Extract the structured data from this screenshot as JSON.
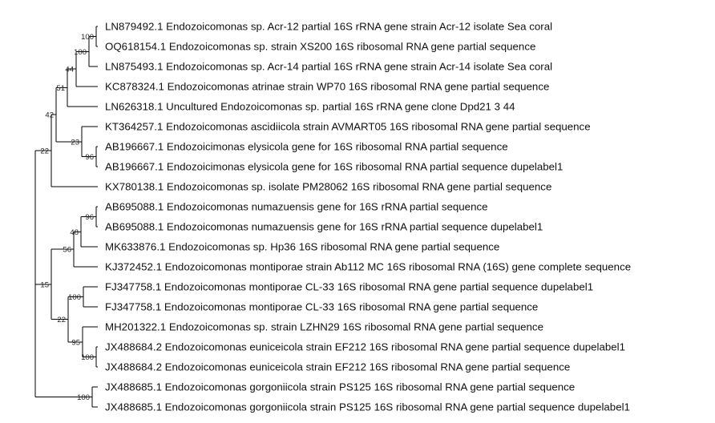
{
  "tree": {
    "taxa": [
      "LN879492.1 Endozoicomonas sp. Acr-12 partial 16S rRNA gene strain Acr-12 isolate Sea coral",
      "OQ618154.1 Endozoicomonas sp. strain XS200 16S ribosomal RNA gene partial sequence",
      "LN875493.1 Endozoicomonas sp. Acr-14 partial 16S rRNA gene strain Acr-14 isolate Sea coral",
      "KC878324.1 Endozoicomonas atrinae strain WP70 16S ribosomal RNA gene partial sequence",
      "LN626318.1 Uncultured Endozoicomonas sp. partial 16S rRNA gene clone Dpd21 3 44",
      "KT364257.1 Endozoicomonas ascidiicola strain AVMART05 16S ribosomal RNA gene partial sequence",
      "AB196667.1 Endozoicimonas elysicola gene for 16S ribosomal RNA partial sequence",
      "AB196667.1 Endozoicimonas elysicola gene for 16S ribosomal RNA partial sequence dupelabel1",
      "KX780138.1 Endozoicomonas sp. isolate PM28062 16S ribosomal RNA gene partial sequence",
      "AB695088.1 Endozoicomonas numazuensis gene for 16S rRNA partial sequence",
      "AB695088.1 Endozoicomonas numazuensis gene for 16S rRNA partial sequence dupelabel1",
      "MK633876.1 Endozoicomonas sp. Hp36 16S ribosomal RNA gene partial sequence",
      "KJ372452.1 Endozoicomonas montiporae strain Ab112 MC 16S ribosomal RNA (16S) gene complete sequence",
      "FJ347758.1 Endozoicomonas montiporae CL-33 16S ribosomal RNA gene partial sequence dupelabel1",
      "FJ347758.1 Endozoicomonas montiporae CL-33 16S ribosomal RNA gene partial sequence",
      "MH201322.1 Endozoicomonas sp. strain LZHN29 16S ribosomal RNA gene partial sequence",
      "JX488684.2 Endozoicomonas euniceicola strain EF212 16S ribosomal RNA gene partial sequence dupelabel1",
      "JX488684.2 Endozoicomonas euniceicola strain EF212 16S ribosomal RNA gene partial sequence",
      "JX488685.1 Endozoicomonas gorgoniicola strain PS125 16S ribosomal RNA gene partial sequence",
      "JX488685.1 Endozoicomonas gorgoniicola strain PS125 16S ribosomal RNA gene partial sequence dupelabel1"
    ],
    "supports": [
      "100",
      "100",
      "44",
      "51",
      "42",
      "23",
      "96",
      "22",
      "96",
      "48",
      "56",
      "15",
      "100",
      "22",
      "95",
      "100",
      "100"
    ]
  }
}
